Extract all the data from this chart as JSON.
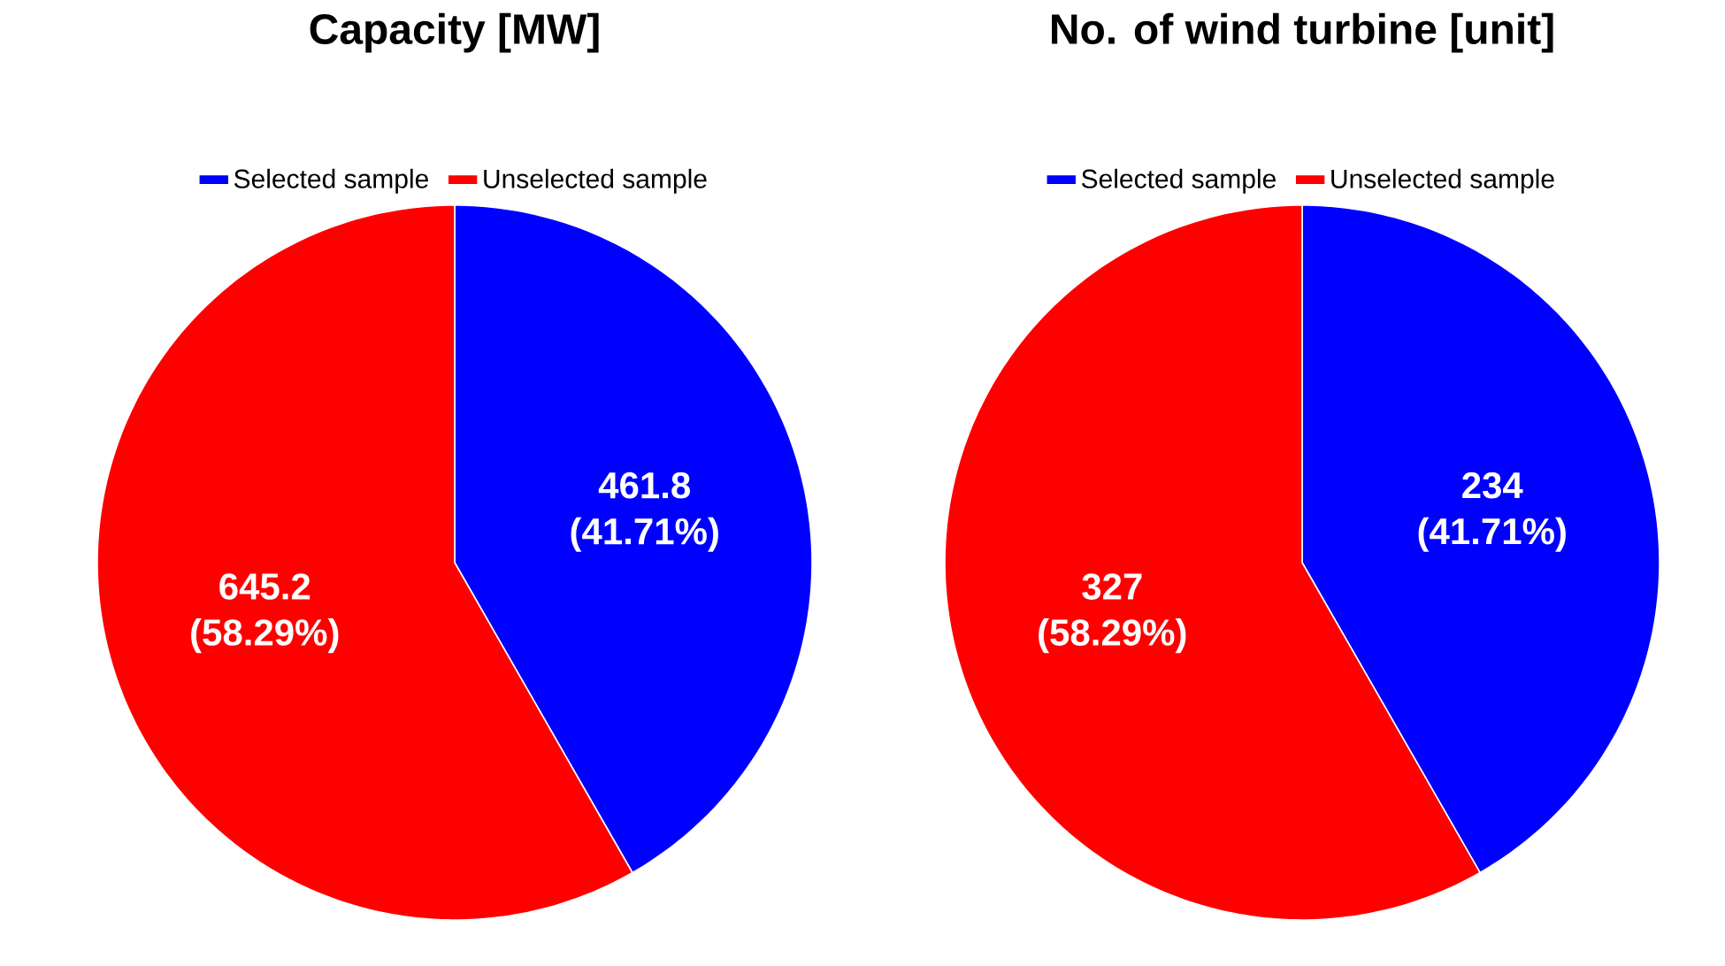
{
  "chart_data": [
    {
      "type": "pie",
      "title": "Capacity [MW]",
      "categories": [
        "Selected sample",
        "Unselected sample"
      ],
      "values": [
        461.8,
        645.2
      ],
      "colors": [
        "#0000ff",
        "#ff0000"
      ],
      "value_labels": [
        "461.8 (41.71%)",
        "645.2 (58.29%)"
      ],
      "legend": "top"
    },
    {
      "type": "pie",
      "title": "No. of wind turbine [unit]",
      "categories": [
        "Selected sample",
        "Unselected sample"
      ],
      "values": [
        234,
        327
      ],
      "colors": [
        "#0000ff",
        "#ff0000"
      ],
      "value_labels": [
        "234 (41.71%)",
        "327 (58.29%)"
      ],
      "legend": "top"
    }
  ]
}
